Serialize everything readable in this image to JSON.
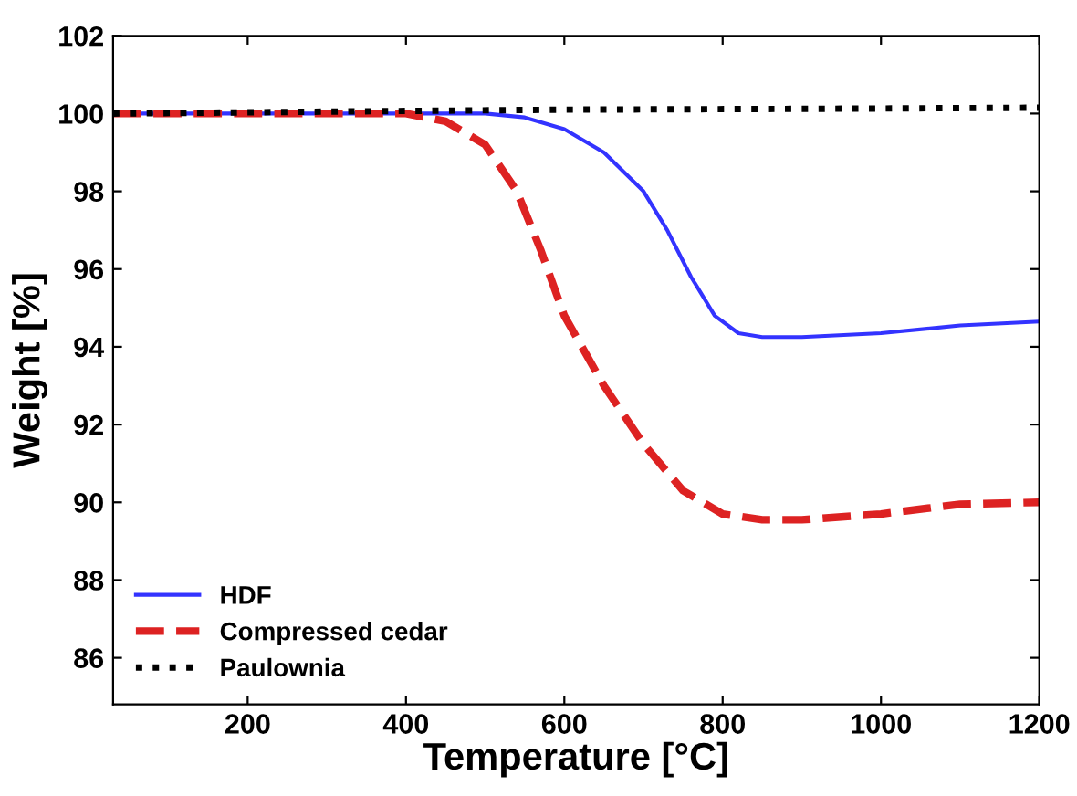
{
  "chart_data": {
    "type": "line",
    "xlabel": "Temperature [°C]",
    "ylabel": "Weight [%]",
    "xlim": [
      30,
      1200
    ],
    "ylim": [
      84.8,
      102
    ],
    "xticks": [
      200,
      400,
      600,
      800,
      1000,
      1200
    ],
    "yticks": [
      86,
      88,
      90,
      92,
      94,
      96,
      98,
      100,
      102
    ],
    "grid": false,
    "legend": "bottom left",
    "marker": "none",
    "series": [
      {
        "name": "HDF",
        "color": "#3333ff",
        "line_style": "solid",
        "x": [
          30,
          500,
          550,
          600,
          650,
          700,
          730,
          760,
          790,
          820,
          850,
          900,
          1000,
          1100,
          1200
        ],
        "values": [
          100.0,
          100.0,
          99.9,
          99.6,
          99.0,
          98.0,
          97.0,
          95.8,
          94.8,
          94.35,
          94.25,
          94.25,
          94.35,
          94.55,
          94.65
        ]
      },
      {
        "name": "Compressed cedar",
        "color": "#dd2222",
        "line_style": "dashed",
        "x": [
          30,
          200,
          300,
          400,
          450,
          500,
          540,
          570,
          600,
          650,
          700,
          750,
          800,
          850,
          900,
          1000,
          1100,
          1200
        ],
        "values": [
          100.0,
          100.0,
          100.0,
          100.0,
          99.8,
          99.2,
          98.0,
          96.5,
          94.8,
          93.0,
          91.5,
          90.3,
          89.7,
          89.55,
          89.55,
          89.7,
          89.95,
          90.0
        ]
      },
      {
        "name": "Paulownia",
        "color": "#000000",
        "line_style": "dotted",
        "x": [
          30,
          300,
          600,
          900,
          1200
        ],
        "values": [
          100.0,
          100.05,
          100.1,
          100.12,
          100.15
        ]
      }
    ]
  }
}
